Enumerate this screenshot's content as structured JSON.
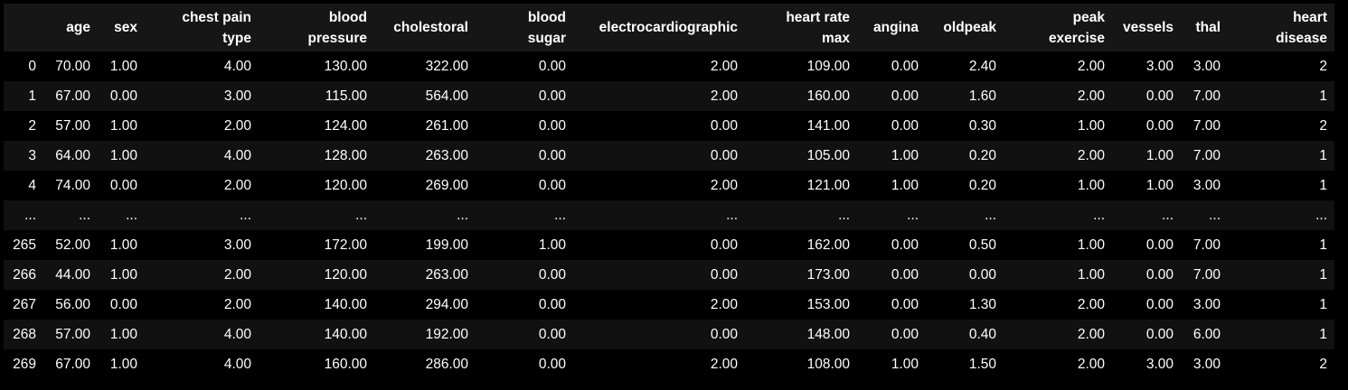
{
  "table": {
    "columns": [
      "age",
      "sex",
      "chest pain\ntype",
      "blood\npressure",
      "cholestoral",
      "blood\nsugar",
      "electrocardiographic",
      "heart rate\nmax",
      "angina",
      "oldpeak",
      "peak\nexercise",
      "vessels",
      "thal",
      "heart\ndisease"
    ],
    "rows": [
      {
        "index": "0",
        "values": [
          "70.00",
          "1.00",
          "4.00",
          "130.00",
          "322.00",
          "0.00",
          "2.00",
          "109.00",
          "0.00",
          "2.40",
          "2.00",
          "3.00",
          "3.00",
          "2"
        ]
      },
      {
        "index": "1",
        "values": [
          "67.00",
          "0.00",
          "3.00",
          "115.00",
          "564.00",
          "0.00",
          "2.00",
          "160.00",
          "0.00",
          "1.60",
          "2.00",
          "0.00",
          "7.00",
          "1"
        ]
      },
      {
        "index": "2",
        "values": [
          "57.00",
          "1.00",
          "2.00",
          "124.00",
          "261.00",
          "0.00",
          "0.00",
          "141.00",
          "0.00",
          "0.30",
          "1.00",
          "0.00",
          "7.00",
          "2"
        ]
      },
      {
        "index": "3",
        "values": [
          "64.00",
          "1.00",
          "4.00",
          "128.00",
          "263.00",
          "0.00",
          "0.00",
          "105.00",
          "1.00",
          "0.20",
          "2.00",
          "1.00",
          "7.00",
          "1"
        ]
      },
      {
        "index": "4",
        "values": [
          "74.00",
          "0.00",
          "2.00",
          "120.00",
          "269.00",
          "0.00",
          "2.00",
          "121.00",
          "1.00",
          "0.20",
          "1.00",
          "1.00",
          "3.00",
          "1"
        ]
      },
      {
        "index": "...",
        "values": [
          "...",
          "...",
          "...",
          "...",
          "...",
          "...",
          "...",
          "...",
          "...",
          "...",
          "...",
          "...",
          "...",
          "..."
        ]
      },
      {
        "index": "265",
        "values": [
          "52.00",
          "1.00",
          "3.00",
          "172.00",
          "199.00",
          "1.00",
          "0.00",
          "162.00",
          "0.00",
          "0.50",
          "1.00",
          "0.00",
          "7.00",
          "1"
        ]
      },
      {
        "index": "266",
        "values": [
          "44.00",
          "1.00",
          "2.00",
          "120.00",
          "263.00",
          "0.00",
          "0.00",
          "173.00",
          "0.00",
          "0.00",
          "1.00",
          "0.00",
          "7.00",
          "1"
        ]
      },
      {
        "index": "267",
        "values": [
          "56.00",
          "0.00",
          "2.00",
          "140.00",
          "294.00",
          "0.00",
          "2.00",
          "153.00",
          "0.00",
          "1.30",
          "2.00",
          "0.00",
          "3.00",
          "1"
        ]
      },
      {
        "index": "268",
        "values": [
          "57.00",
          "1.00",
          "4.00",
          "140.00",
          "192.00",
          "0.00",
          "0.00",
          "148.00",
          "0.00",
          "0.40",
          "2.00",
          "0.00",
          "6.00",
          "1"
        ]
      },
      {
        "index": "269",
        "values": [
          "67.00",
          "1.00",
          "4.00",
          "160.00",
          "286.00",
          "0.00",
          "2.00",
          "108.00",
          "1.00",
          "1.50",
          "2.00",
          "3.00",
          "3.00",
          "2"
        ]
      }
    ]
  },
  "colors": {
    "background": "#000000",
    "header_background": "#161616",
    "stripe": "#111111",
    "text": "#ffffff"
  }
}
